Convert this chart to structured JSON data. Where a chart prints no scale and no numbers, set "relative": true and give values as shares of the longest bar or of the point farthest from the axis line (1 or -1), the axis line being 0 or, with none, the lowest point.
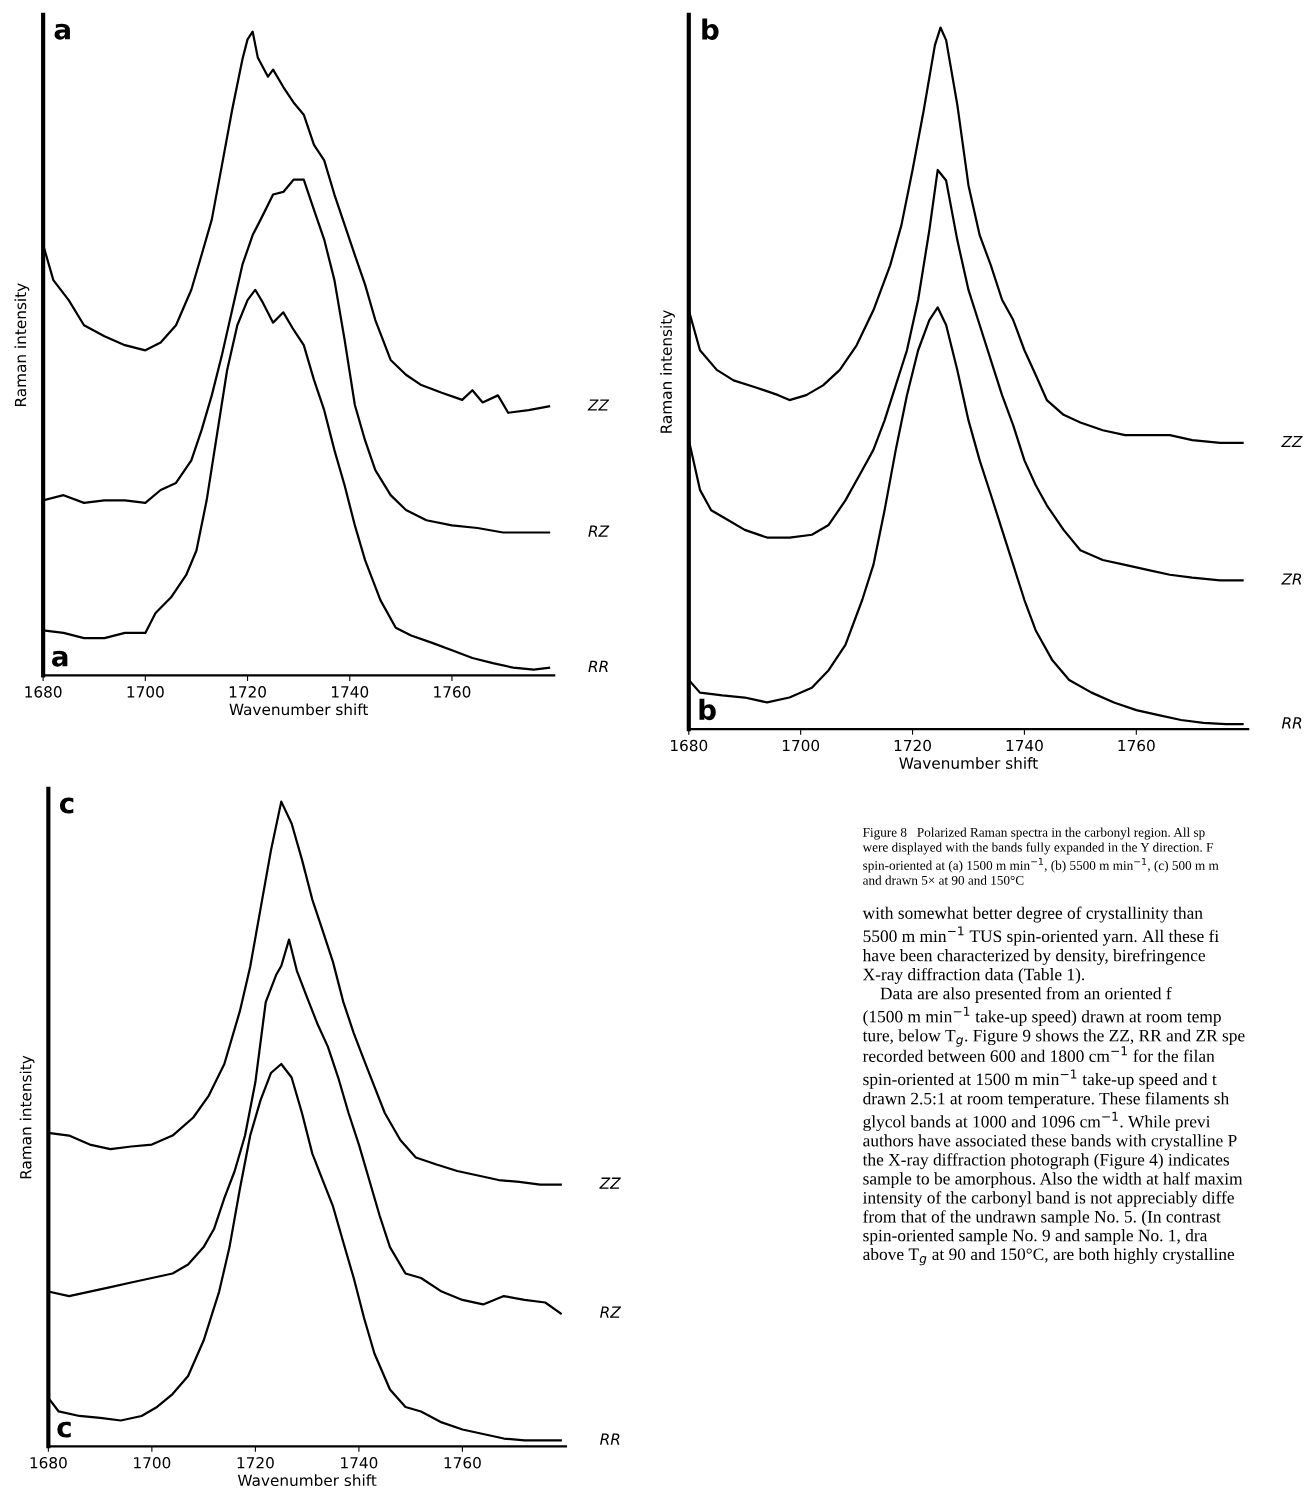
{
  "chart_data": [
    {
      "type": "line",
      "title": "a",
      "xlabel": "Wavenumber shift",
      "ylabel": "Raman intensity",
      "relative": true,
      "xlim": [
        1680,
        1780
      ],
      "xticks": [
        1680,
        1700,
        1720,
        1740,
        1760
      ],
      "tick_labels": "x",
      "annotations": [
        "a"
      ],
      "series": [
        {
          "name": "ZZ",
          "color": "#000000",
          "x": [
            1680,
            1682,
            1685,
            1688,
            1692,
            1696,
            1700,
            1703,
            1706,
            1709,
            1711,
            1713,
            1715,
            1717,
            1719,
            1720,
            1721,
            1722,
            1724,
            1725,
            1727,
            1729,
            1731,
            1733,
            1735,
            1737,
            1739,
            1741,
            1743,
            1745,
            1748,
            1751,
            1754,
            1758,
            1762,
            1764,
            1766,
            1769,
            1771,
            1775,
            1779
          ],
          "values": [
            0.669,
            0.614,
            0.583,
            0.544,
            0.527,
            0.513,
            0.505,
            0.517,
            0.544,
            0.599,
            0.653,
            0.708,
            0.793,
            0.879,
            0.957,
            0.988,
            1.0,
            0.96,
            0.93,
            0.941,
            0.914,
            0.89,
            0.871,
            0.824,
            0.8,
            0.747,
            0.7,
            0.653,
            0.607,
            0.552,
            0.49,
            0.467,
            0.451,
            0.439,
            0.428,
            0.443,
            0.424,
            0.435,
            0.408,
            0.412,
            0.418
          ]
        },
        {
          "name": "RZ",
          "color": "#000000",
          "x": [
            1680,
            1684,
            1688,
            1692,
            1696,
            1700,
            1703,
            1706,
            1709,
            1711,
            1713,
            1715,
            1717,
            1719,
            1721,
            1723,
            1725,
            1727,
            1729,
            1731,
            1733,
            1735,
            1737,
            1739,
            1741,
            1743,
            1745,
            1748,
            1751,
            1755,
            1760,
            1765,
            1770,
            1775,
            1779
          ],
          "values": [
            0.272,
            0.28,
            0.268,
            0.272,
            0.272,
            0.268,
            0.288,
            0.299,
            0.334,
            0.381,
            0.435,
            0.498,
            0.568,
            0.638,
            0.684,
            0.715,
            0.747,
            0.751,
            0.77,
            0.77,
            0.723,
            0.677,
            0.614,
            0.521,
            0.42,
            0.365,
            0.319,
            0.28,
            0.257,
            0.241,
            0.233,
            0.229,
            0.222,
            0.222,
            0.222
          ]
        },
        {
          "name": "RR",
          "color": "#000000",
          "x": [
            1680,
            1684,
            1688,
            1692,
            1696,
            1700,
            1702,
            1705,
            1708,
            1710,
            1712,
            1714,
            1716,
            1718,
            1720,
            1721.5,
            1723,
            1725,
            1727,
            1729,
            1731,
            1733,
            1735,
            1737,
            1739,
            1741,
            1743,
            1746,
            1749,
            1752,
            1756,
            1760,
            1764,
            1768,
            1772,
            1776,
            1779
          ],
          "values": [
            0.07,
            0.066,
            0.058,
            0.058,
            0.066,
            0.066,
            0.097,
            0.121,
            0.156,
            0.194,
            0.272,
            0.373,
            0.474,
            0.544,
            0.583,
            0.599,
            0.579,
            0.548,
            0.564,
            0.537,
            0.513,
            0.459,
            0.412,
            0.35,
            0.295,
            0.233,
            0.179,
            0.117,
            0.074,
            0.062,
            0.051,
            0.039,
            0.027,
            0.019,
            0.012,
            0.009,
            0.012
          ]
        }
      ]
    },
    {
      "type": "line",
      "title": "b",
      "xlabel": "Wavenumber shift",
      "ylabel": "Raman intensity",
      "relative": true,
      "xlim": [
        1680,
        1780
      ],
      "xticks": [
        1680,
        1700,
        1720,
        1740,
        1760
      ],
      "tick_labels": "x",
      "annotations": [
        "b"
      ],
      "series": [
        {
          "name": "ZZ",
          "color": "#000000",
          "x": [
            1680,
            1682,
            1685,
            1688,
            1692,
            1696,
            1698,
            1701,
            1704,
            1707,
            1710,
            1713,
            1716,
            1718,
            1720,
            1722,
            1724,
            1725,
            1726,
            1728,
            1730,
            1732,
            1734,
            1736,
            1738,
            1740,
            1742,
            1744,
            1747,
            1750,
            1754,
            1758,
            1762,
            1766,
            1770,
            1775,
            1779
          ],
          "values": [
            0.597,
            0.54,
            0.512,
            0.497,
            0.487,
            0.476,
            0.469,
            0.476,
            0.49,
            0.512,
            0.547,
            0.597,
            0.661,
            0.718,
            0.797,
            0.882,
            0.975,
            1.0,
            0.982,
            0.89,
            0.775,
            0.704,
            0.661,
            0.612,
            0.583,
            0.54,
            0.505,
            0.469,
            0.448,
            0.437,
            0.426,
            0.419,
            0.419,
            0.419,
            0.412,
            0.408,
            0.408
          ]
        },
        {
          "name": "ZR",
          "color": "#000000",
          "x": [
            1680,
            1682,
            1684,
            1687,
            1690,
            1694,
            1698,
            1702,
            1705,
            1708,
            1711,
            1713,
            1715,
            1717,
            1719,
            1721,
            1723,
            1724.5,
            1726,
            1728,
            1730,
            1732,
            1734,
            1736,
            1738,
            1740,
            1742,
            1744,
            1747,
            1750,
            1754,
            1758,
            1762,
            1766,
            1770,
            1775,
            1779
          ],
          "values": [
            0.412,
            0.341,
            0.312,
            0.298,
            0.284,
            0.273,
            0.273,
            0.277,
            0.291,
            0.326,
            0.369,
            0.398,
            0.44,
            0.49,
            0.54,
            0.612,
            0.711,
            0.797,
            0.782,
            0.697,
            0.626,
            0.576,
            0.526,
            0.476,
            0.433,
            0.383,
            0.348,
            0.319,
            0.284,
            0.255,
            0.241,
            0.234,
            0.227,
            0.22,
            0.216,
            0.212,
            0.212
          ]
        },
        {
          "name": "RR",
          "color": "#000000",
          "x": [
            1680,
            1682,
            1686,
            1690,
            1694,
            1698,
            1702,
            1705,
            1708,
            1711,
            1713,
            1715,
            1717,
            1719,
            1721,
            1723,
            1724.5,
            1726,
            1728,
            1730,
            1732,
            1734,
            1736,
            1738,
            1740,
            1742,
            1745,
            1748,
            1752,
            1756,
            1760,
            1764,
            1768,
            1772,
            1776,
            1779
          ],
          "values": [
            0.07,
            0.052,
            0.048,
            0.045,
            0.038,
            0.045,
            0.059,
            0.084,
            0.12,
            0.184,
            0.234,
            0.312,
            0.398,
            0.476,
            0.54,
            0.583,
            0.601,
            0.576,
            0.512,
            0.44,
            0.383,
            0.334,
            0.284,
            0.234,
            0.184,
            0.141,
            0.098,
            0.07,
            0.052,
            0.038,
            0.027,
            0.02,
            0.013,
            0.009,
            0.007,
            0.007
          ]
        }
      ]
    },
    {
      "type": "line",
      "title": "c",
      "xlabel": "Wavenumber shift",
      "ylabel": "Raman intensity",
      "relative": true,
      "xlim": [
        1680,
        1780
      ],
      "xticks": [
        1680,
        1700,
        1720,
        1740,
        1760
      ],
      "tick_labels": "x",
      "annotations": [
        "c",
        "Figure 8   Polarized Raman spectra in the carbonyl region. All sp\nwere displayed with the bands fully expanded in the Y direction. F\nspin-oriented at (a) 1500 m min$^{−1}$, (b) 5500 m min$^{−1}$, (c) 500 m m\nand drawn 5× at 90 and 150°C",
        "with somewhat better degree of crystallinity than\n5500 m min$^{−1}$ TUS spin-oriented yarn. All these fi\nhave been characterized by density, birefringence\nX-ray diffraction data (Table 1).\n    Data are also presented from an oriented f\n(1500 m min$^{−1}$ take-up speed) drawn at room temp\nture, below T$_{g}$. Figure 9 shows the ZZ, RR and ZR spe\nrecorded between 600 and 1800 cm$^{−1}$ for the filan\nspin-oriented at 1500 m min$^{−1}$ take-up speed and t\ndrawn 2.5:1 at room temperature. These filaments sh\nglycol bands at 1000 and 1096 cm$^{−1}$. While previ\nauthors have associated these bands with crystalline P\nthe X-ray diffraction photograph (Figure 4) indicates\nsample to be amorphous. Also the width at half maxim\nintensity of the carbonyl band is not appreciably diffe\nfrom that of the undrawn sample No. 5. (In contrast\nspin-oriented sample No. 9 and sample No. 1, dra\nabove T$_{g}$ at 90 and 150°C, are both highly crystalline"
      ],
      "series": [
        {
          "name": "ZZ",
          "color": "#000000",
          "x": [
            1680,
            1684,
            1688,
            1692,
            1696,
            1700,
            1704,
            1708,
            1711,
            1714,
            1717,
            1719,
            1721,
            1723,
            1725,
            1727,
            1729,
            1731,
            1733,
            1735,
            1737,
            1739,
            1741,
            1743,
            1745,
            1748,
            1751,
            1755,
            1759,
            1763,
            1767,
            1771,
            1775,
            1779
          ],
          "values": [
            0.486,
            0.482,
            0.468,
            0.461,
            0.465,
            0.468,
            0.482,
            0.51,
            0.544,
            0.593,
            0.675,
            0.744,
            0.834,
            0.924,
            1.0,
            0.966,
            0.91,
            0.848,
            0.8,
            0.751,
            0.689,
            0.641,
            0.599,
            0.558,
            0.517,
            0.475,
            0.448,
            0.437,
            0.427,
            0.42,
            0.413,
            0.41,
            0.406,
            0.406
          ]
        },
        {
          "name": "RZ",
          "color": "#000000",
          "x": [
            1680,
            1684,
            1688,
            1692,
            1696,
            1700,
            1704,
            1707,
            1710,
            1712,
            1714,
            1716,
            1718,
            1720,
            1722,
            1724,
            1725,
            1726.5,
            1728,
            1730,
            1732,
            1734,
            1736,
            1738,
            1740,
            1742,
            1744,
            1746,
            1749,
            1752,
            1756,
            1760,
            1764,
            1768,
            1772,
            1776,
            1779
          ],
          "values": [
            0.24,
            0.233,
            0.24,
            0.247,
            0.254,
            0.261,
            0.268,
            0.282,
            0.309,
            0.337,
            0.385,
            0.427,
            0.482,
            0.565,
            0.689,
            0.731,
            0.745,
            0.786,
            0.738,
            0.696,
            0.655,
            0.62,
            0.572,
            0.517,
            0.468,
            0.413,
            0.358,
            0.309,
            0.268,
            0.261,
            0.24,
            0.227,
            0.22,
            0.233,
            0.227,
            0.223,
            0.206
          ]
        },
        {
          "name": "RR",
          "color": "#000000",
          "x": [
            1680,
            1682,
            1686,
            1690,
            1694,
            1698,
            1701,
            1704,
            1707,
            1710,
            1713,
            1715,
            1717,
            1719,
            1721,
            1723,
            1725,
            1727,
            1729,
            1731,
            1733,
            1735,
            1737,
            1739,
            1741,
            1743,
            1746,
            1749,
            1752,
            1756,
            1760,
            1764,
            1768,
            1772,
            1776,
            1779
          ],
          "values": [
            0.075,
            0.054,
            0.047,
            0.044,
            0.04,
            0.047,
            0.061,
            0.081,
            0.109,
            0.164,
            0.24,
            0.309,
            0.399,
            0.482,
            0.537,
            0.579,
            0.593,
            0.572,
            0.517,
            0.454,
            0.413,
            0.372,
            0.316,
            0.261,
            0.199,
            0.144,
            0.088,
            0.061,
            0.054,
            0.037,
            0.026,
            0.019,
            0.012,
            0.009,
            0.009,
            0.009
          ]
        }
      ]
    }
  ]
}
